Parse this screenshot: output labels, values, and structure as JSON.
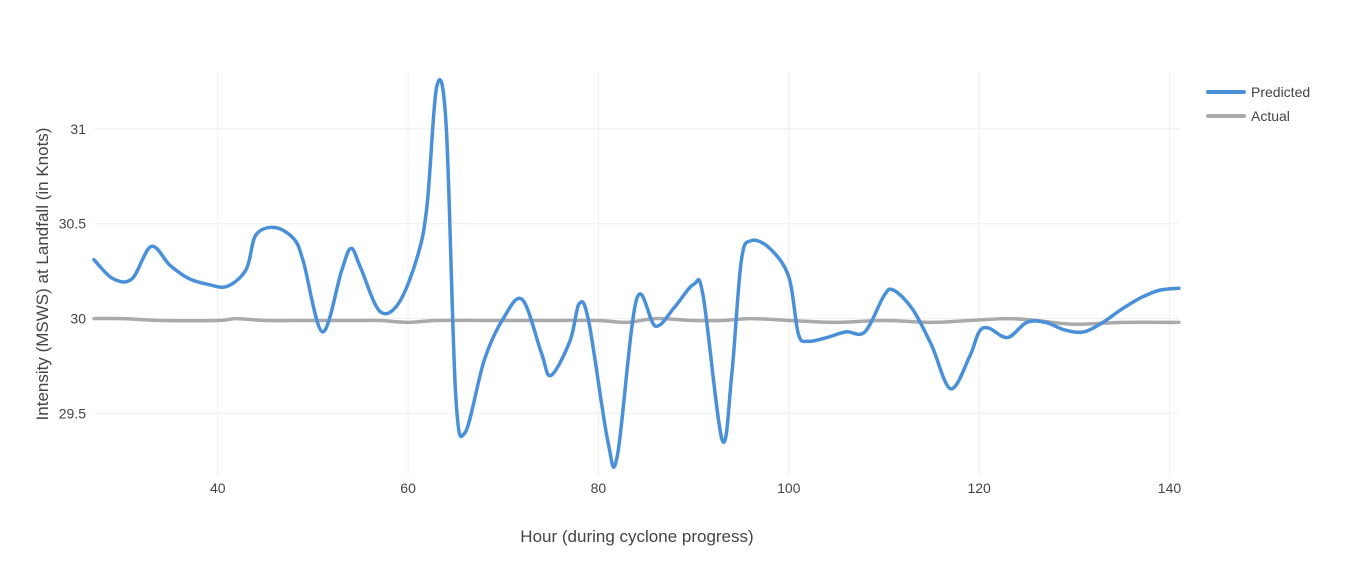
{
  "chart_data": {
    "type": "line",
    "title": "",
    "xlabel": "Hour (during cyclone progress)",
    "ylabel": "Intensity (MSWS) at Landfall (in Knots)",
    "xlim": [
      27,
      141
    ],
    "ylim": [
      29.17,
      31.3
    ],
    "xticks": [
      40,
      60,
      80,
      100,
      120,
      140
    ],
    "yticks": [
      29.5,
      30,
      30.5,
      31
    ],
    "ytick_labels": [
      "29.5",
      "30",
      "30.5",
      "31"
    ],
    "grid": true,
    "legend_position": "top-right",
    "series": [
      {
        "name": "Predicted",
        "color": "#4a90d9",
        "x": [
          27,
          29,
          31,
          33,
          35,
          37,
          39,
          41,
          43,
          44,
          46,
          48,
          49,
          51,
          53,
          54,
          55,
          57,
          59,
          61,
          62,
          63,
          64,
          65,
          66,
          68,
          70,
          72,
          74,
          75,
          77,
          78,
          79,
          81,
          82,
          84,
          86,
          88,
          90,
          91,
          93,
          94,
          95,
          96,
          98,
          100,
          101,
          102,
          104,
          106,
          108,
          110,
          111,
          113,
          115,
          117,
          119,
          120,
          121,
          123,
          125,
          127,
          129,
          131,
          133,
          135,
          137,
          139,
          141
        ],
        "y": [
          30.31,
          30.21,
          30.21,
          30.38,
          30.28,
          30.21,
          30.18,
          30.17,
          30.26,
          30.44,
          30.48,
          30.42,
          30.3,
          29.93,
          30.25,
          30.37,
          30.27,
          30.04,
          30.08,
          30.33,
          30.6,
          31.22,
          31.02,
          29.6,
          29.4,
          29.78,
          30.0,
          30.1,
          29.82,
          29.7,
          29.88,
          30.08,
          29.98,
          29.35,
          29.28,
          30.1,
          29.96,
          30.06,
          30.18,
          30.12,
          29.36,
          29.7,
          30.3,
          30.41,
          30.37,
          30.22,
          29.92,
          29.88,
          29.9,
          29.93,
          29.93,
          30.12,
          30.15,
          30.05,
          29.86,
          29.63,
          29.8,
          29.93,
          29.95,
          29.9,
          29.98,
          29.98,
          29.94,
          29.93,
          29.98,
          30.05,
          30.11,
          30.15,
          30.16
        ]
      },
      {
        "name": "Actual",
        "color": "#aaaaaa",
        "x": [
          27,
          30,
          34,
          40,
          42,
          45,
          50,
          55,
          57,
          60,
          63,
          68,
          72,
          76,
          80,
          83,
          86,
          90,
          93,
          96,
          100,
          105,
          110,
          115,
          119,
          123,
          126,
          130,
          135,
          141
        ],
        "y": [
          30.0,
          30.0,
          29.99,
          29.99,
          30.0,
          29.99,
          29.99,
          29.99,
          29.99,
          29.98,
          29.99,
          29.99,
          29.99,
          29.99,
          29.99,
          29.98,
          30.0,
          29.99,
          29.99,
          30.0,
          29.99,
          29.98,
          29.99,
          29.98,
          29.99,
          30.0,
          29.99,
          29.97,
          29.98,
          29.98
        ]
      }
    ]
  }
}
